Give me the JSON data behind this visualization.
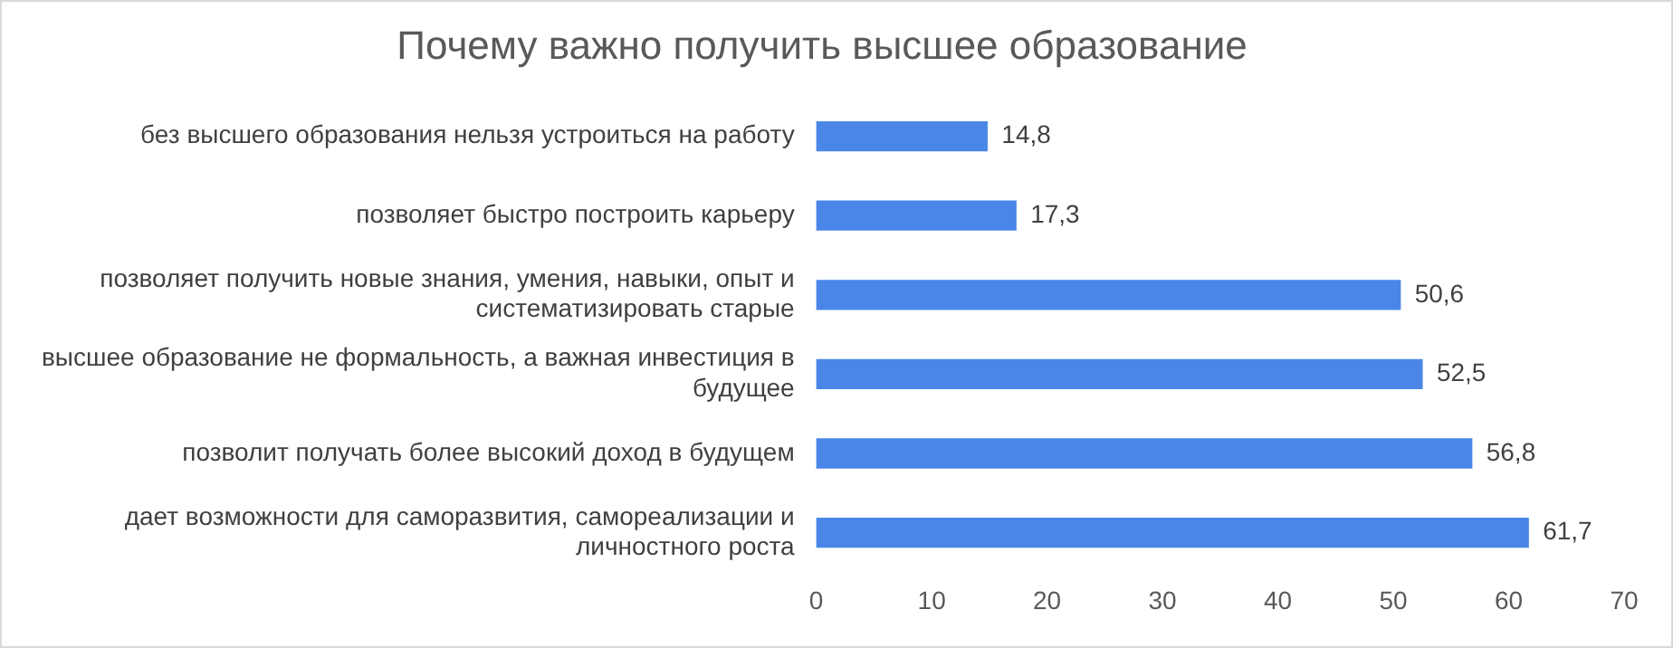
{
  "chart_data": {
    "type": "bar",
    "orientation": "horizontal",
    "title": "Почему важно получить высшее образование",
    "categories": [
      "без высшего образования нельзя устроиться на работу",
      "позволяет быстро построить карьеру",
      "позволяет получить новые знания, умения, навыки, опыт и систематизировать старые",
      "высшее образование не формальность, а важная инвестиция в будущее",
      "позволит получать более высокий доход в будущем",
      "дает возможности для саморазвития, самореализации и личностного роста"
    ],
    "values": [
      14.8,
      17.3,
      50.6,
      52.5,
      56.8,
      61.7
    ],
    "value_labels": [
      "14,8",
      "17,3",
      "50,6",
      "52,5",
      "56,8",
      "61,7"
    ],
    "color": "#4a86e8",
    "xlim": [
      0,
      70
    ],
    "xticks": [
      0,
      10,
      20,
      30,
      40,
      50,
      60,
      70
    ],
    "grid": false,
    "legend": false
  }
}
